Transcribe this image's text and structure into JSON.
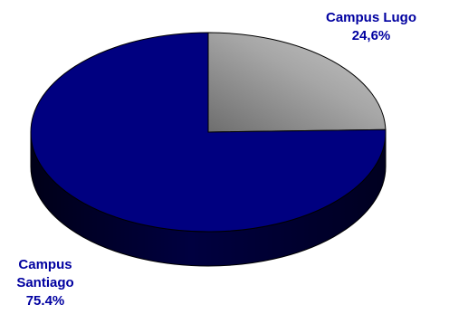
{
  "chart_data": {
    "type": "pie",
    "style": "3d",
    "slices": [
      {
        "label": "Campus Lugo",
        "value_label": "24,6%",
        "value": 24.6,
        "color": "#a8a8a8"
      },
      {
        "label_lines": [
          "Campus",
          "Santiago"
        ],
        "value_label": "75.4%",
        "value": 75.4,
        "color": "#000080"
      }
    ],
    "legend": "none",
    "grid": false
  }
}
